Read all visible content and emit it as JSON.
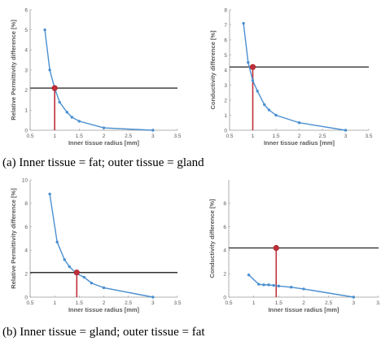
{
  "colors": {
    "curve": "#4a8fd0",
    "marker_stroke": "#a8232d",
    "marker_fill": "#c0303a",
    "vline": "#c0303a",
    "hline": "#333333",
    "axis": "#999999",
    "text": "#595959"
  },
  "captions": {
    "a": "(a)  Inner tissue = fat; outer tissue = gland",
    "b": "(b)  Inner tissue = gland; outer tissue = fat"
  },
  "chart_data": [
    {
      "id": "a-perm",
      "type": "line",
      "xlabel": "Inner tissue radius [mm]",
      "ylabel": "Relative Permittivity difference [%]",
      "xlim": [
        0.5,
        3.5
      ],
      "ylim": [
        0,
        6
      ],
      "xticks": [
        "0.5",
        "1",
        "1.5",
        "2",
        "2.5",
        "3",
        "3.5"
      ],
      "yticks": [
        "0",
        "1",
        "2",
        "3",
        "4",
        "5",
        "6"
      ],
      "series": [
        {
          "x": [
            0.8,
            0.9,
            1.0,
            1.1,
            1.25,
            1.35,
            1.5,
            2.0,
            3.0
          ],
          "values": [
            5.0,
            3.0,
            2.1,
            1.4,
            0.9,
            0.65,
            0.45,
            0.12,
            0.0
          ]
        }
      ],
      "hline": 2.1,
      "marker": {
        "x": 1.0,
        "y": 2.1
      }
    },
    {
      "id": "a-cond",
      "type": "line",
      "xlabel": "Inner tissue radius [mm]",
      "ylabel": "Conductivity difference [%]",
      "xlim": [
        0.5,
        3.5
      ],
      "ylim": [
        0,
        8
      ],
      "xticks": [
        "0.5",
        "1",
        "1.5",
        "2",
        "2.5",
        "3",
        "3.5"
      ],
      "yticks": [
        "0",
        "1",
        "2",
        "3",
        "4",
        "5",
        "6",
        "7",
        "8"
      ],
      "series": [
        {
          "x": [
            0.8,
            0.9,
            1.0,
            1.1,
            1.25,
            1.35,
            1.5,
            2.0,
            3.0
          ],
          "values": [
            7.1,
            4.5,
            3.3,
            2.6,
            1.7,
            1.35,
            1.0,
            0.5,
            0.0
          ]
        }
      ],
      "hline": 4.2,
      "marker": {
        "x": 1.0,
        "y": 4.2
      }
    },
    {
      "id": "b-perm",
      "type": "line",
      "xlabel": "Inner tissue radius [mm]",
      "ylabel": "Relative Permittivity difference [%]",
      "xlim": [
        0.5,
        3.5
      ],
      "ylim": [
        0,
        10
      ],
      "xticks": [
        "0.5",
        "1",
        "1.5",
        "2",
        "2.5",
        "3",
        "3.5"
      ],
      "yticks": [
        "0",
        "2",
        "4",
        "6",
        "8",
        "10"
      ],
      "series": [
        {
          "x": [
            0.9,
            1.05,
            1.2,
            1.3,
            1.45,
            1.6,
            1.75,
            2.0,
            3.0
          ],
          "values": [
            8.8,
            4.7,
            3.2,
            2.6,
            2.0,
            1.7,
            1.2,
            0.8,
            0.0
          ]
        }
      ],
      "hline": 2.1,
      "marker": {
        "x": 1.45,
        "y": 2.1
      }
    },
    {
      "id": "b-cond",
      "type": "line",
      "xlabel": "Inner tissue radius [mm]",
      "ylabel": "Conductivity difference [%]",
      "xlim": [
        0.5,
        3.5
      ],
      "ylim": [
        0,
        10
      ],
      "xticks": [
        "0.5",
        "1",
        "1.5",
        "2",
        "2.5",
        "3",
        "3.5"
      ],
      "yticks": [
        "0",
        "2",
        "4",
        "6",
        "8"
      ],
      "series": [
        {
          "x": [
            0.9,
            1.1,
            1.2,
            1.3,
            1.4,
            1.5,
            1.75,
            2.0,
            3.0
          ],
          "values": [
            1.9,
            1.1,
            1.05,
            1.05,
            1.0,
            0.95,
            0.85,
            0.7,
            0.0
          ]
        }
      ],
      "hline": 4.2,
      "marker": {
        "x": 1.45,
        "y": 4.2
      }
    }
  ]
}
